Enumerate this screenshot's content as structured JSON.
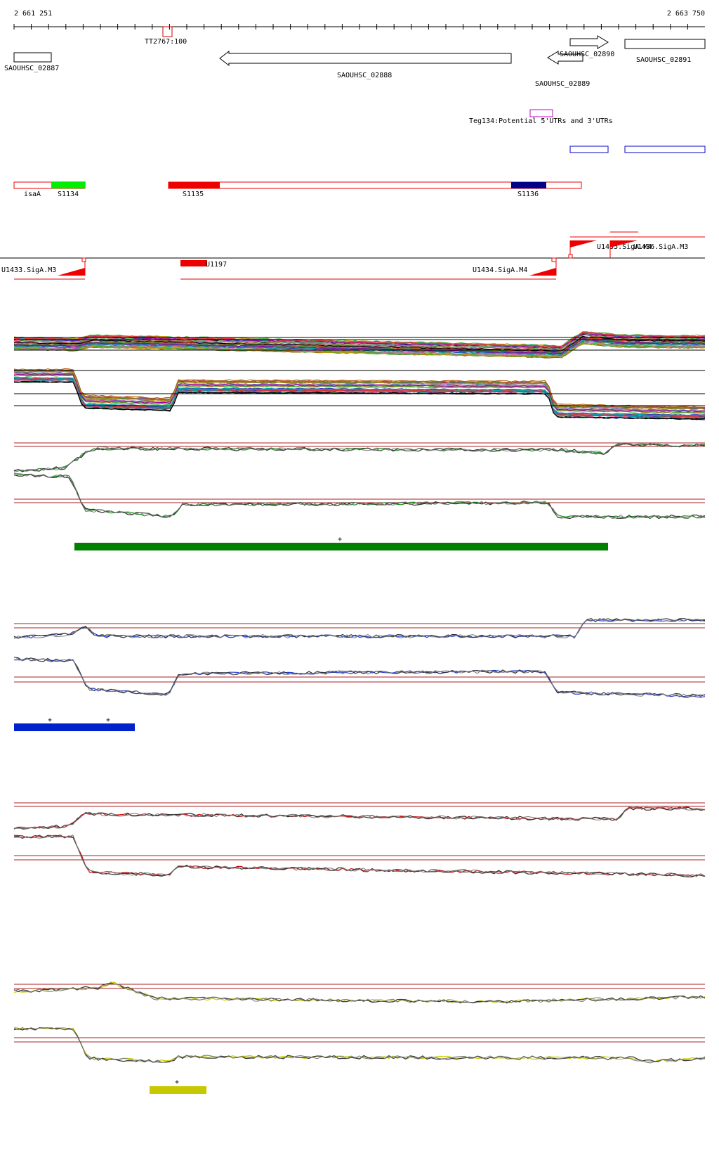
{
  "coordinates": {
    "start": "2 661 251",
    "end": "2 663 750"
  },
  "colors": {
    "gene": "#000000",
    "terminator": "#cc0000",
    "utr": "#cc00cc",
    "region_box": "#0000cc",
    "srna_outline": "#ee0000",
    "s1134": "#00ee00",
    "s1135": "#ee0000",
    "s1136": "#000088",
    "promoter": "#ee0000",
    "threshold": "#aa2222",
    "panel1_series": "#1a8c1a",
    "panel2_series": "#1f3fd6",
    "panel3_series": "#cc1111",
    "panel4_series": "#cccc00",
    "panel1_bar": "#008000",
    "panel2_bar": "#0022cc",
    "panel4_bar": "#c8c800"
  },
  "genes": [
    {
      "label": "SAOUHSC_02887"
    },
    {
      "label": "TT2767:100"
    },
    {
      "label": "SAOUHSC_02888"
    },
    {
      "label": "SAOUHSC_02889"
    },
    {
      "label": "SAOUHSC_02890"
    },
    {
      "label": "SAOUHSC_02891"
    }
  ],
  "utr_label": "Teg134:Potential 5'UTRs and 3'UTRs",
  "srna_labels": [
    "isaA",
    "S1134",
    "S1135",
    "S1136"
  ],
  "promoter_labels": [
    "U1433.SigA.M3",
    "U1197",
    "U1434.SigA.M4",
    "U1435.SigA.M4",
    "U1436.SigA.M3"
  ],
  "plus_mark": "+"
}
